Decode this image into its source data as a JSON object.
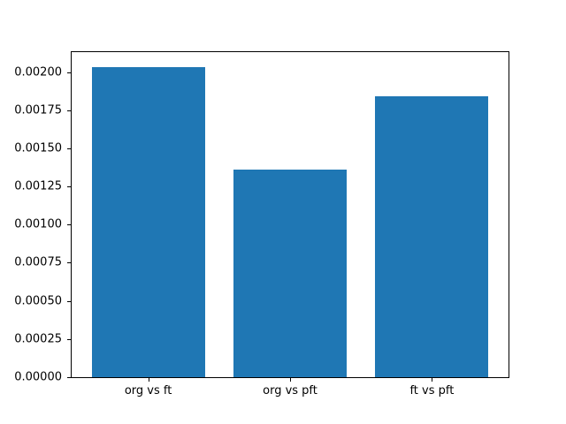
{
  "figure": {
    "background_color": "#ffffff",
    "spine_color": "#000000",
    "tick_color": "#000000"
  },
  "chart_data": {
    "type": "bar",
    "title": "",
    "xlabel": "",
    "ylabel": "",
    "categories": [
      "org vs ft",
      "org vs pft",
      "ft vs pft"
    ],
    "values": [
      0.00203,
      0.00136,
      0.00184
    ],
    "bar_color": "#1f77b4",
    "bar_width": 0.8,
    "xlim": [
      -0.54,
      2.54
    ],
    "ylim": [
      0,
      0.00213
    ],
    "grid": false,
    "legend": null,
    "y_ticks": [
      0,
      0.00025,
      0.0005,
      0.00075,
      0.001,
      0.00125,
      0.0015,
      0.00175,
      0.002
    ],
    "y_tick_labels": [
      "0.00000",
      "0.00025",
      "0.00050",
      "0.00075",
      "0.00100",
      "0.00125",
      "0.00150",
      "0.00175",
      "0.00200"
    ]
  }
}
